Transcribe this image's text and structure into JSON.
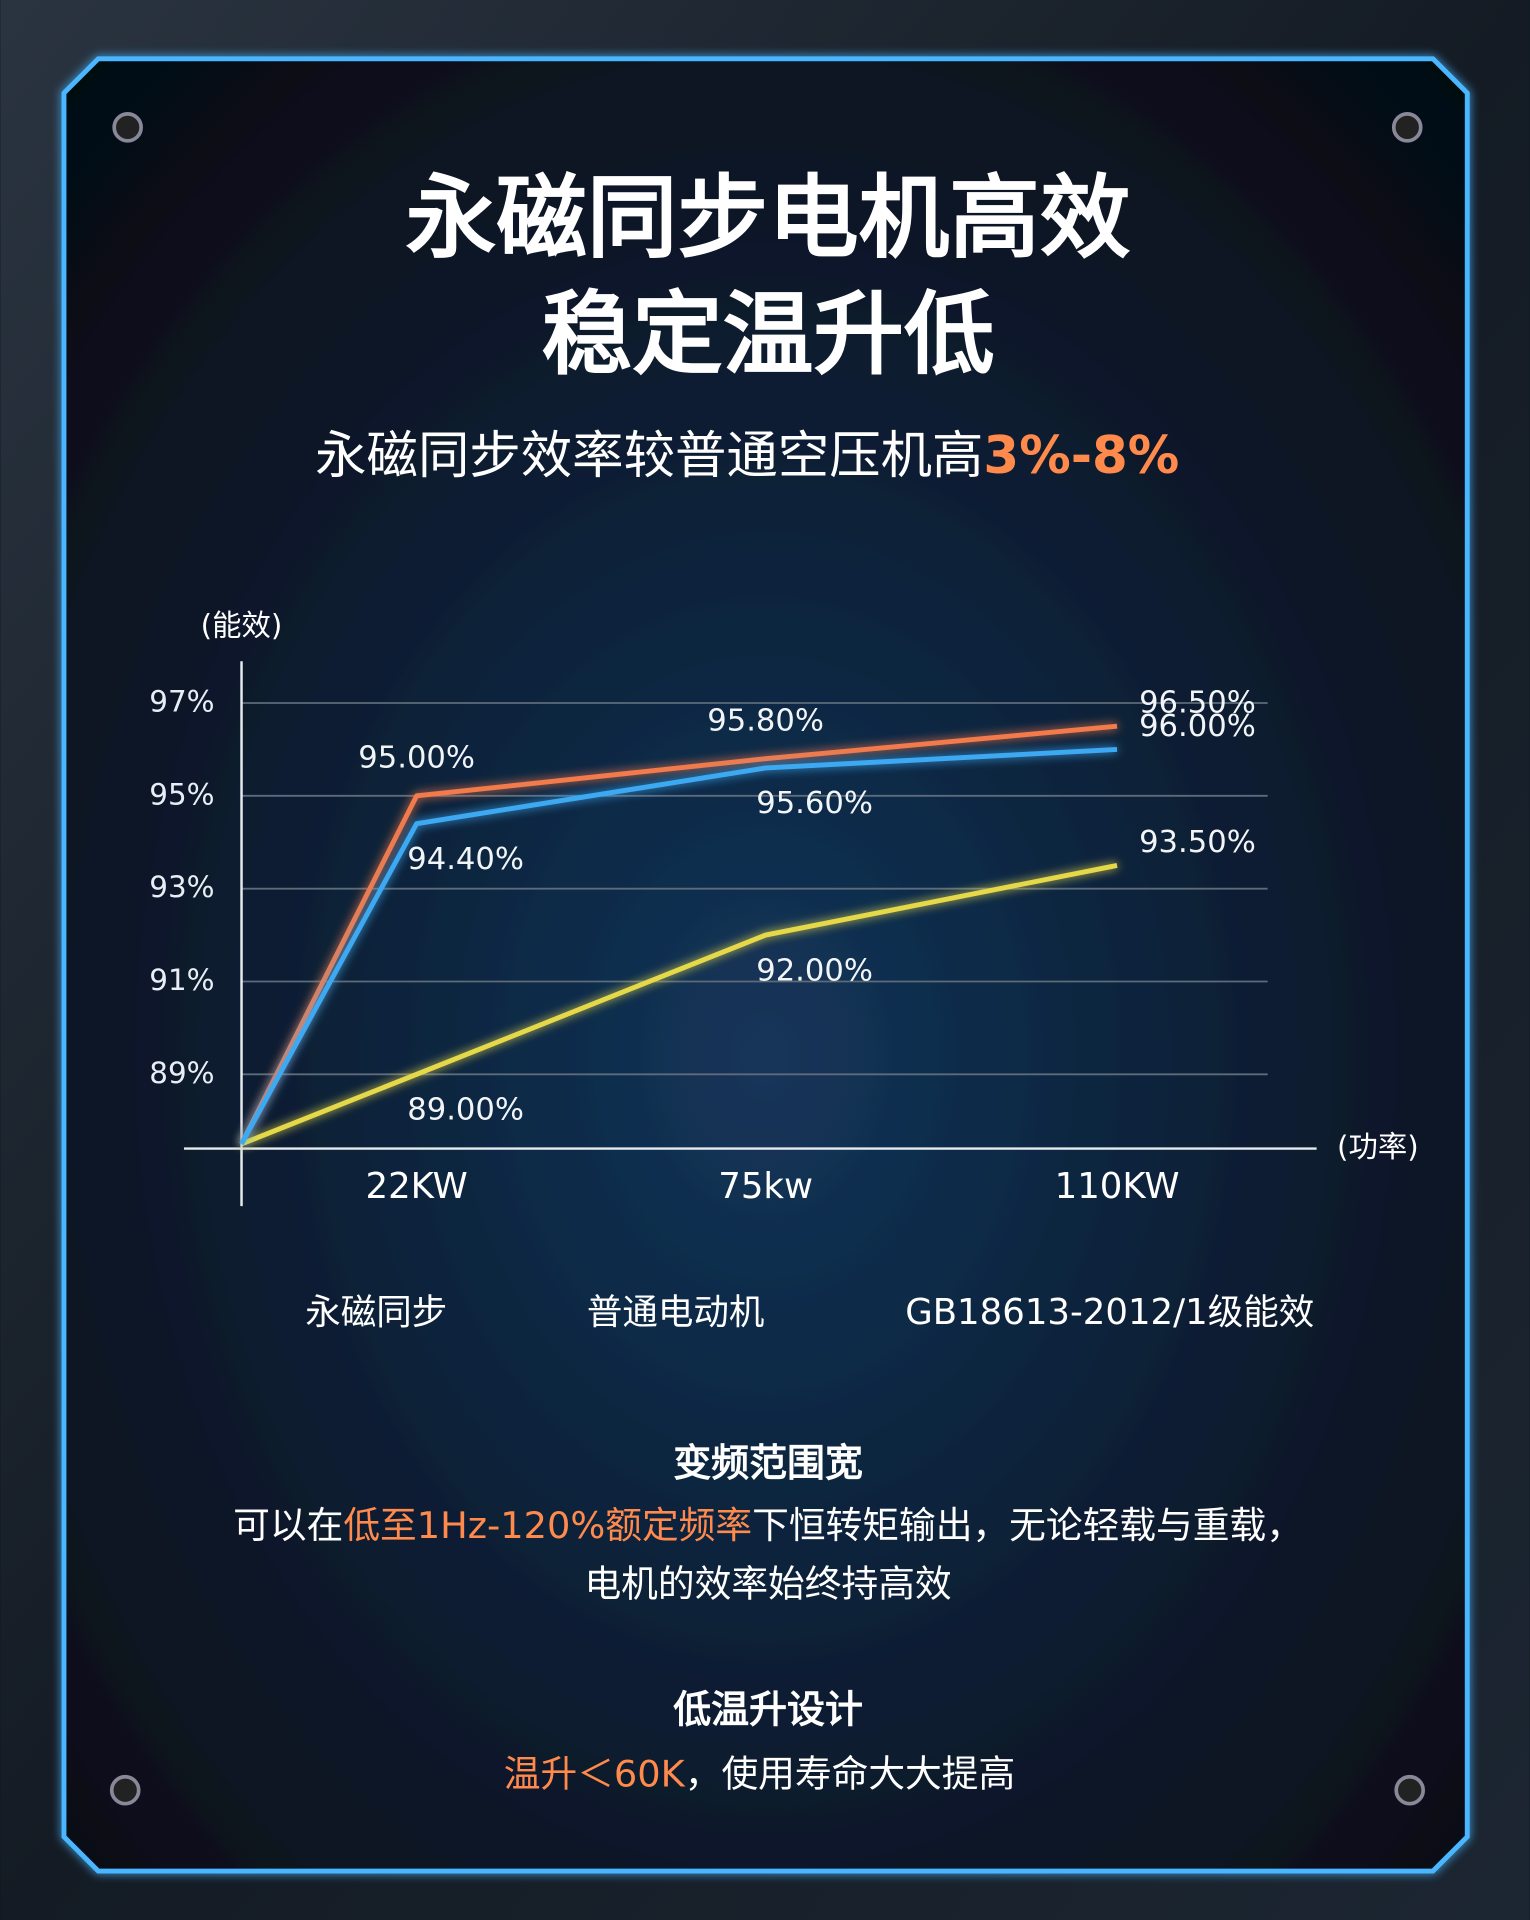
{
  "title_lines": [
    "永磁同步电机高效",
    "稳定温升低"
  ],
  "subtitle": {
    "text": "永磁同步效率较普通空压机高",
    "highlight": "3%-8%"
  },
  "sections": [
    {
      "heading": "变频范围宽",
      "lines": [
        [
          "可以在",
          "低至1Hz-120%额定频率",
          "下恒转矩输出，无论轻载与重载，"
        ],
        [
          "电机的效率始终持高效"
        ]
      ]
    },
    {
      "heading": "低温升设计",
      "lines": [
        [
          "温升＜60K",
          "，使用寿命大大提高"
        ]
      ]
    }
  ],
  "chart_data": {
    "type": "line",
    "y_label": "(能效)",
    "x_label": "(功率)",
    "categories": [
      null,
      "22KW",
      "75kw",
      "110KW"
    ],
    "ylim": [
      87.4,
      97.9
    ],
    "yticks": [
      {
        "value": 89,
        "label": "89%"
      },
      {
        "value": 91,
        "label": "91%"
      },
      {
        "value": 93,
        "label": "93%"
      },
      {
        "value": 95,
        "label": "95%"
      },
      {
        "value": 97,
        "label": "97%"
      }
    ],
    "grid": true,
    "series": [
      {
        "name": "永磁同步",
        "color": "#f27a4c",
        "values": [
          87.5,
          95.0,
          95.8,
          96.5
        ],
        "value_labels": [
          null,
          "95.00%",
          "95.80%",
          "96.50%"
        ]
      },
      {
        "name": "普通电动机",
        "color": "#e6d94a",
        "values": [
          87.5,
          89.0,
          92.0,
          93.5
        ],
        "value_labels": [
          null,
          "89.00%",
          "92.00%",
          "93.50%"
        ]
      },
      {
        "name": "GB18613-2012/1级能效",
        "color": "#3ea9f2",
        "values": [
          87.5,
          94.4,
          95.6,
          96.0
        ],
        "value_labels": [
          null,
          "94.40%",
          "95.60%",
          "96.00%"
        ]
      }
    ]
  }
}
